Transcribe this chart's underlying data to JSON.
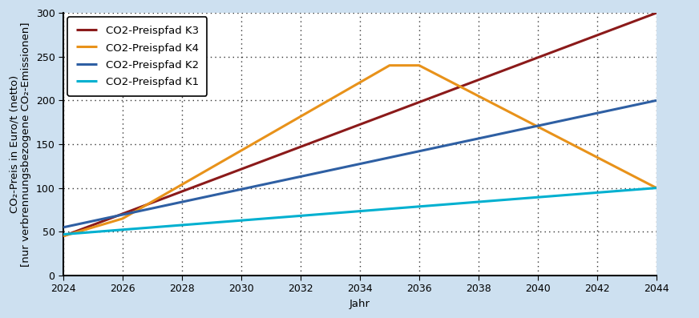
{
  "background_color": "#cde0f0",
  "plot_bg_color": "#ffffff",
  "xlabel": "Jahr",
  "ylabel": "CO₂-Preis in Euro/t (netto)\n[nur verbrennungsbezogene CO₂-Emissionen]",
  "xlim": [
    2024,
    2044
  ],
  "ylim": [
    0,
    300
  ],
  "yticks": [
    0,
    50,
    100,
    150,
    200,
    250,
    300
  ],
  "xticks": [
    2024,
    2026,
    2028,
    2030,
    2032,
    2034,
    2036,
    2038,
    2040,
    2042,
    2044
  ],
  "series": [
    {
      "label": "CO2-Preispfad K3",
      "color": "#8b1a1a",
      "linewidth": 2.2,
      "x": [
        2024,
        2044
      ],
      "y": [
        45,
        300
      ]
    },
    {
      "label": "CO2-Preispfad K4",
      "color": "#e8921a",
      "linewidth": 2.2,
      "x": [
        2024,
        2026,
        2035,
        2036,
        2044
      ],
      "y": [
        45,
        65,
        240,
        240,
        100
      ]
    },
    {
      "label": "CO2-Preispfad K2",
      "color": "#2e5fa3",
      "linewidth": 2.2,
      "x": [
        2024,
        2044
      ],
      "y": [
        55,
        200
      ]
    },
    {
      "label": "CO2-Preispfad K1",
      "color": "#00b0d0",
      "linewidth": 2.2,
      "x": [
        2024,
        2044
      ],
      "y": [
        47,
        100
      ]
    }
  ],
  "legend_fontsize": 9.5,
  "axis_fontsize": 9.5,
  "tick_fontsize": 9
}
